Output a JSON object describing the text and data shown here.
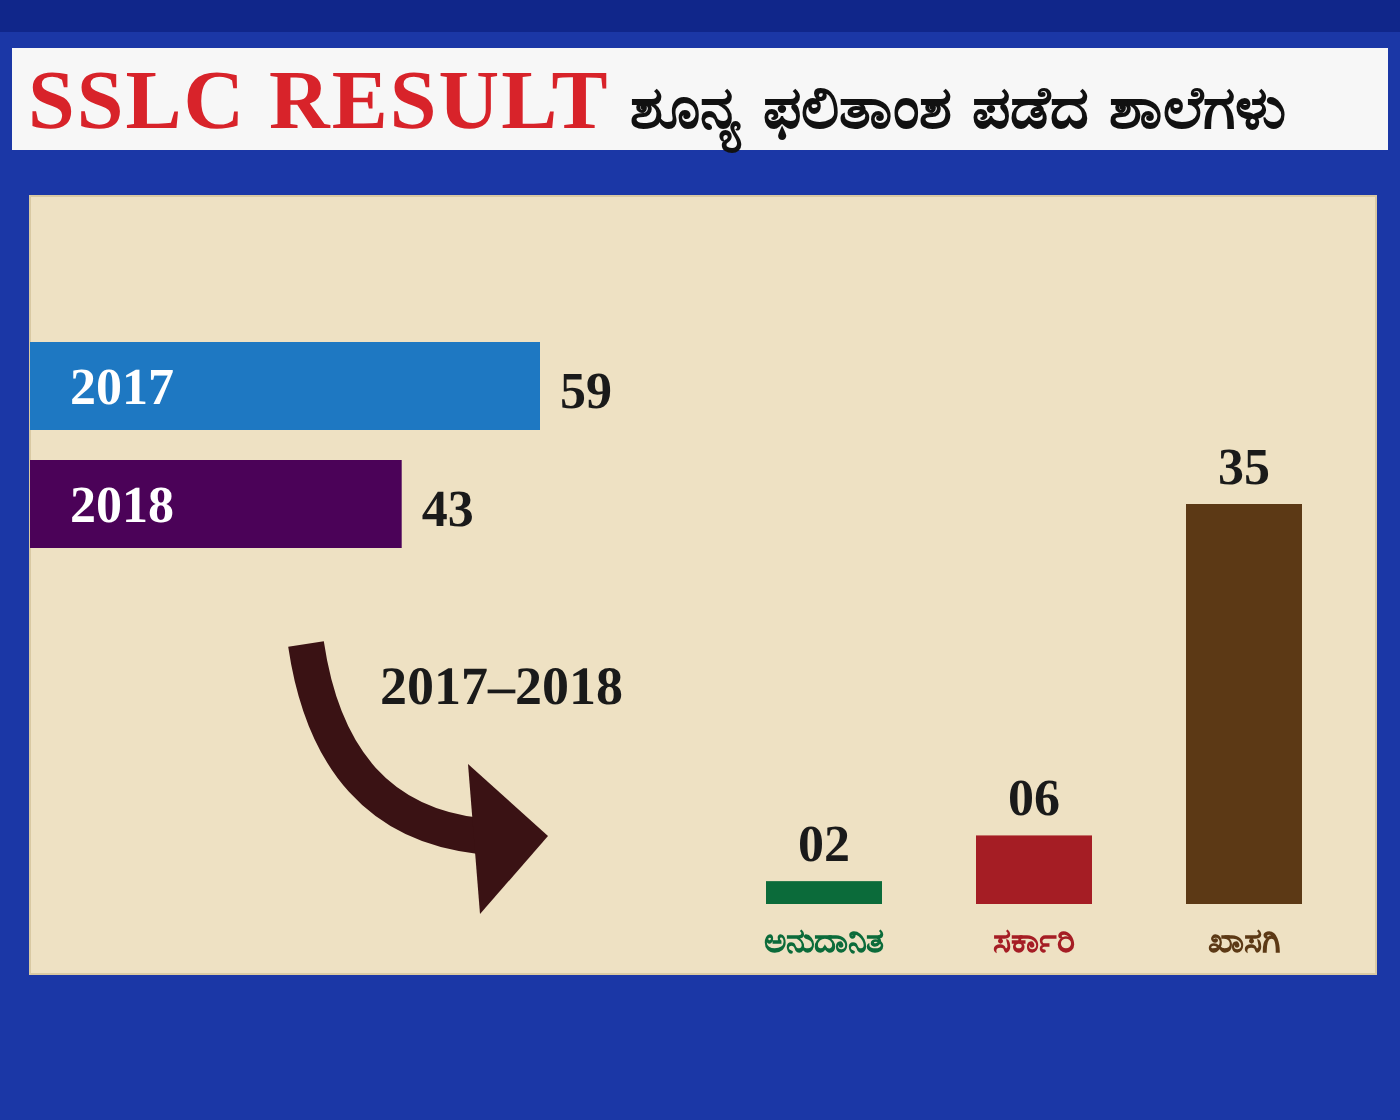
{
  "chart_data": [
    {
      "type": "bar",
      "title": "**SSLC RESULT** ಶೂನ್ಯ ಫಲಿತಾಂಶ ಪಡೆದ ಶಾಲೆಗಳು",
      "orientation": "horizontal",
      "categories": [
        "2017",
        "2018"
      ],
      "values": [
        59,
        43
      ],
      "colors": [
        "#1e78c2",
        "#4b0258"
      ],
      "data_labels": true
    },
    {
      "type": "bar",
      "title": "2017–2018",
      "categories": [
        "ಅನುದಾನಿತ",
        "ಸರ್ಕಾರಿ",
        "ಖಾಸಗಿ"
      ],
      "values": [
        2,
        6,
        35
      ],
      "colors": [
        "#0b6b3a",
        "#a51d24",
        "#5c3915"
      ],
      "value_labels": [
        "02",
        "06",
        "35"
      ]
    }
  ]
}
